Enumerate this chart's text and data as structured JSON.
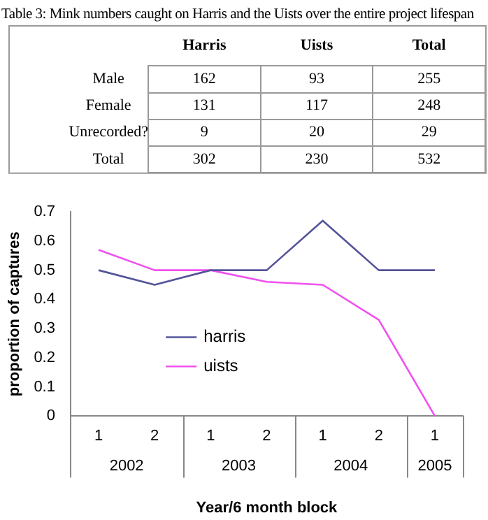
{
  "chart_data": [
    {
      "type": "heatmap",
      "title": "Table 3: Mink numbers caught on Harris and the Uists over the entire project lifespan",
      "categories": [
        "Harris",
        "Uists",
        "Total"
      ],
      "y_categories": [
        "Male",
        "Female",
        "Unrecorded?",
        "Total"
      ],
      "cells": [
        [
          162,
          93,
          255
        ],
        [
          131,
          117,
          248
        ],
        [
          9,
          20,
          29
        ],
        [
          302,
          230,
          532
        ]
      ],
      "data_labels": true
    },
    {
      "type": "line",
      "categories": [
        "1",
        "2",
        "1",
        "2",
        "1",
        "2",
        "1"
      ],
      "xlabel": "Year/6 month block",
      "ylabel": "proportion of captures",
      "annotations": [
        "2002",
        "2003",
        "2004",
        "2005"
      ],
      "series": [
        {
          "name": "harris",
          "color": "#54549a",
          "values": [
            0.5,
            0.45,
            0.5,
            0.5,
            0.67,
            0.5,
            0.5
          ]
        },
        {
          "name": "uists",
          "color": "#f050f0",
          "values": [
            0.57,
            0.5,
            0.5,
            0.46,
            0.45,
            0.33,
            0
          ]
        }
      ],
      "ylim": [
        0,
        0.7
      ],
      "yticks": [
        0,
        0.1,
        0.2,
        0.3,
        0.4,
        0.5,
        0.6,
        0.7
      ],
      "grid": false,
      "legend": "bottom left",
      "marker": "none",
      "line_style": "solid"
    }
  ]
}
